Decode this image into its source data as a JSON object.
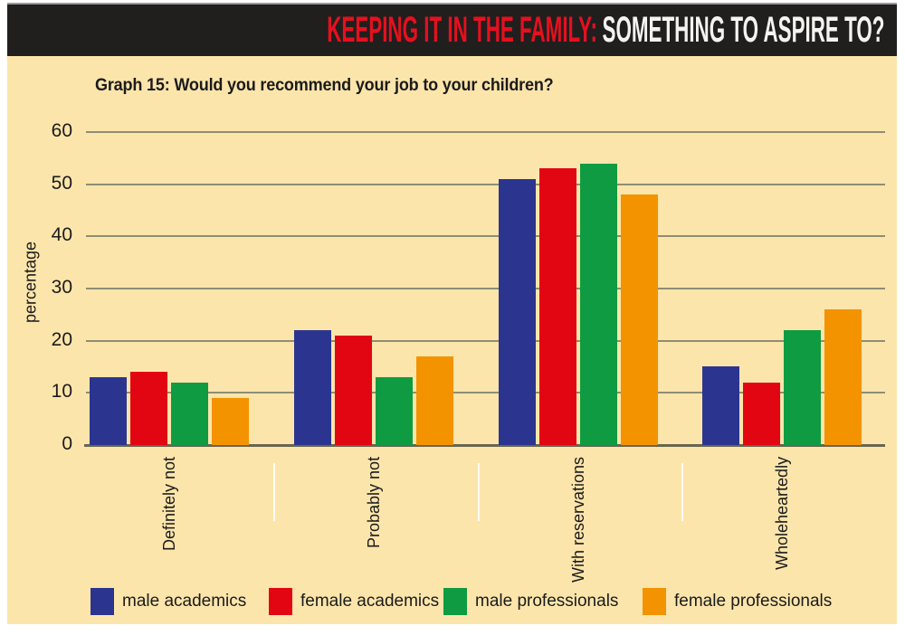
{
  "header": {
    "title_emphasis": "KEEPING IT IN THE FAMILY:",
    "title_rest": "SOMETHING TO ASPIRE TO?",
    "emphasis_color": "#e5101f",
    "bar_color": "#211e1e"
  },
  "panel": {
    "background": "#fce5ab"
  },
  "chart_data": {
    "type": "bar",
    "title": "Graph 15: Would you recommend your job to your children?",
    "ylabel": "percentage",
    "ylim": [
      0,
      60
    ],
    "yticks": [
      0,
      10,
      20,
      30,
      40,
      50,
      60
    ],
    "grid": true,
    "legend_position": "bottom",
    "categories": [
      "Definitely not",
      "Probably not",
      "With reservations",
      "Wholeheartedly"
    ],
    "series": [
      {
        "name": "male academics",
        "color": "#2b3590",
        "values": [
          13,
          22,
          51,
          15
        ]
      },
      {
        "name": "female academics",
        "color": "#e20613",
        "values": [
          14,
          21,
          53,
          12
        ]
      },
      {
        "name": "male professionals",
        "color": "#0f9b41",
        "values": [
          12,
          13,
          54,
          22
        ]
      },
      {
        "name": "female professionals",
        "color": "#f39300",
        "values": [
          9,
          17,
          48,
          26
        ]
      }
    ]
  },
  "colors": {
    "gridline": "#8e8d74",
    "axis": "#67664f",
    "text": "#1b1b1b",
    "separator": "#ffffff"
  }
}
